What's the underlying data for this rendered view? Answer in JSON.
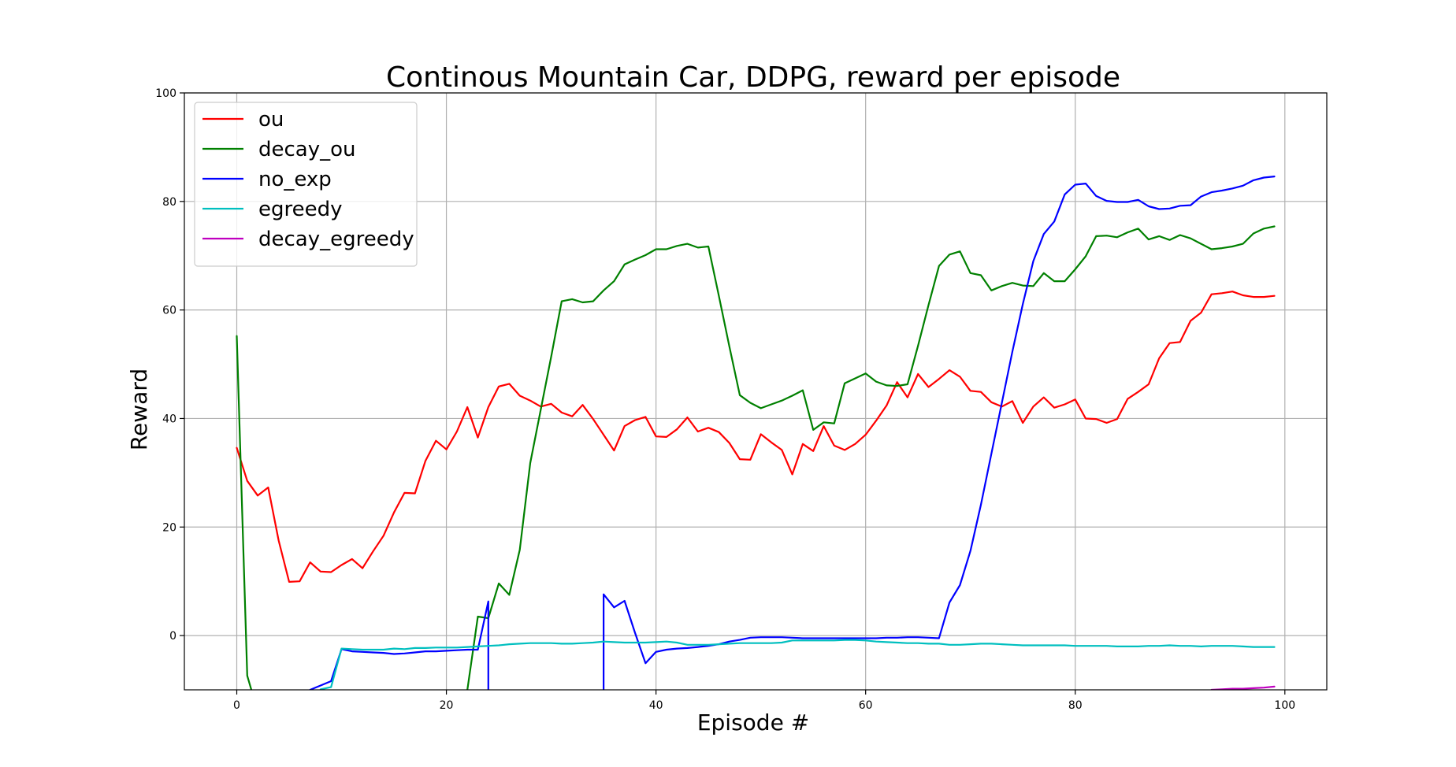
{
  "chart_data": {
    "type": "line",
    "title": "Continous Mountain Car, DDPG, reward per episode",
    "xlabel": "Episode #",
    "ylabel": "Reward",
    "xlim": [
      -5,
      104
    ],
    "ylim": [
      -10,
      100
    ],
    "xticks": [
      0,
      20,
      40,
      60,
      80,
      100
    ],
    "yticks": [
      0,
      20,
      40,
      60,
      80,
      100
    ],
    "grid": true,
    "legend_position": "top-left",
    "series": [
      {
        "name": "ou",
        "color": "#ff0000",
        "x": [
          0,
          1,
          2,
          3,
          4,
          5,
          6,
          7,
          8,
          9,
          10,
          11,
          12,
          13,
          14,
          15,
          16,
          17,
          18,
          19,
          20,
          21,
          22,
          23,
          24,
          25,
          26,
          27,
          28,
          29,
          30,
          31,
          32,
          33,
          34,
          35,
          36,
          37,
          38,
          39,
          40,
          41,
          42,
          43,
          44,
          45,
          46,
          47,
          48,
          49,
          50,
          51,
          52,
          53,
          54,
          55,
          56,
          57,
          58,
          59,
          60,
          61,
          62,
          63,
          64,
          65,
          66,
          67,
          68,
          69,
          70,
          71,
          72,
          73,
          74,
          75,
          76,
          77,
          78,
          79,
          80,
          81,
          82,
          83,
          84,
          85,
          86,
          87,
          88,
          89,
          90,
          91,
          92,
          93,
          94,
          95,
          96,
          97,
          98,
          99
        ],
        "y": [
          34.6,
          28.5,
          25.8,
          27.3,
          17.5,
          9.9,
          10.0,
          13.5,
          11.8,
          11.7,
          13.0,
          14.1,
          12.4,
          15.5,
          18.4,
          22.7,
          26.3,
          26.2,
          32.2,
          35.9,
          34.3,
          37.6,
          42.1,
          36.5,
          42.1,
          45.9,
          46.4,
          44.2,
          43.3,
          42.2,
          42.7,
          41.1,
          40.4,
          42.5,
          39.9,
          37.0,
          34.1,
          38.6,
          39.7,
          40.3,
          36.7,
          36.6,
          38.0,
          40.2,
          37.6,
          38.3,
          37.5,
          35.5,
          32.5,
          32.4,
          37.1,
          35.6,
          34.2,
          29.7,
          35.3,
          34.0,
          38.6,
          35.0,
          34.2,
          35.3,
          37.0,
          39.6,
          42.4,
          46.7,
          43.9,
          48.2,
          45.8,
          47.3,
          48.9,
          47.7,
          45.1,
          44.9,
          43.0,
          42.2,
          43.2,
          39.2,
          42.2,
          43.9,
          42.0,
          42.6,
          43.5,
          40.0,
          39.9,
          39.2,
          39.9,
          43.6,
          44.9,
          46.3,
          51.1,
          53.9,
          54.1,
          58.0,
          59.5,
          62.9,
          63.1,
          63.4,
          62.7,
          62.4,
          62.4,
          62.6
        ]
      },
      {
        "name": "decay_ou",
        "color": "#008000",
        "x": [
          0,
          1,
          2,
          21,
          22,
          23,
          24,
          25,
          26,
          27,
          28,
          29,
          30,
          31,
          32,
          33,
          34,
          35,
          36,
          37,
          38,
          39,
          40,
          41,
          42,
          43,
          44,
          45,
          46,
          47,
          48,
          49,
          50,
          51,
          52,
          53,
          54,
          55,
          56,
          57,
          58,
          59,
          60,
          61,
          62,
          63,
          64,
          65,
          66,
          67,
          68,
          69,
          70,
          71,
          72,
          73,
          74,
          75,
          76,
          77,
          78,
          79,
          80,
          81,
          82,
          83,
          84,
          85,
          86,
          87,
          88,
          89,
          90,
          91,
          92,
          93,
          94,
          95,
          96,
          97,
          98,
          99
        ],
        "y": [
          55.2,
          -7.4,
          -14,
          -14,
          -10,
          3.5,
          3.2,
          9.6,
          7.5,
          15.8,
          31.8,
          41.6,
          51.4,
          61.6,
          62.0,
          61.4,
          61.6,
          63.6,
          65.3,
          68.4,
          69.3,
          70.1,
          71.2,
          71.2,
          71.8,
          72.2,
          71.5,
          71.7,
          62.6,
          53.3,
          44.3,
          42.9,
          41.9,
          42.6,
          43.3,
          44.2,
          45.2,
          37.9,
          39.3,
          39.1,
          46.5,
          47.4,
          48.3,
          46.8,
          46.1,
          46.0,
          46.3,
          53.4,
          60.9,
          68.1,
          70.2,
          70.8,
          66.8,
          66.4,
          63.6,
          64.4,
          65.0,
          64.5,
          64.4,
          66.8,
          65.3,
          65.3,
          67.5,
          69.9,
          73.6,
          73.7,
          73.4,
          74.3,
          75.0,
          73.0,
          73.6,
          72.9,
          73.8,
          73.2,
          72.2,
          71.2,
          71.4,
          71.7,
          72.2,
          74.1,
          75.0,
          75.4
        ]
      },
      {
        "name": "no_exp",
        "color": "#0000ff",
        "x": [
          7,
          8,
          9,
          10,
          11,
          12,
          13,
          14,
          15,
          16,
          17,
          18,
          19,
          20,
          21,
          22,
          23,
          24,
          24,
          35,
          35,
          36,
          37,
          38,
          39,
          40,
          41,
          42,
          43,
          44,
          45,
          46,
          47,
          48,
          49,
          50,
          51,
          52,
          53,
          54,
          55,
          56,
          57,
          58,
          59,
          60,
          61,
          62,
          63,
          64,
          65,
          66,
          67,
          68,
          69,
          70,
          71,
          72,
          73,
          74,
          75,
          76,
          77,
          78,
          79,
          80,
          81,
          82,
          83,
          84,
          85,
          86,
          87,
          88,
          89,
          90,
          91,
          92,
          93,
          94,
          95,
          96,
          97,
          98,
          99
        ],
        "y": [
          -10.0,
          -9.2,
          -8.4,
          -2.5,
          -2.9,
          -3.0,
          -3.1,
          -3.2,
          -3.4,
          -3.3,
          -3.1,
          -2.9,
          -2.9,
          -2.8,
          -2.7,
          -2.6,
          -2.6,
          6.3,
          -14,
          -14,
          7.6,
          5.2,
          6.4,
          0.5,
          -5.1,
          -3.0,
          -2.6,
          -2.4,
          -2.3,
          -2.1,
          -1.9,
          -1.6,
          -1.1,
          -0.8,
          -0.4,
          -0.3,
          -0.3,
          -0.3,
          -0.4,
          -0.5,
          -0.5,
          -0.5,
          -0.5,
          -0.5,
          -0.5,
          -0.5,
          -0.5,
          -0.4,
          -0.4,
          -0.3,
          -0.3,
          -0.4,
          -0.5,
          6.1,
          9.3,
          15.6,
          24.1,
          33.5,
          42.9,
          52.3,
          61.1,
          69.0,
          74.0,
          76.3,
          81.3,
          83.1,
          83.3,
          81.0,
          80.1,
          79.9,
          79.9,
          80.3,
          79.1,
          78.6,
          78.7,
          79.2,
          79.3,
          80.9,
          81.7,
          82.0,
          82.4,
          82.9,
          83.9,
          84.4,
          84.6
        ]
      },
      {
        "name": "egreedy",
        "color": "#00bfbf",
        "x": [
          8,
          9,
          10,
          11,
          12,
          13,
          14,
          15,
          16,
          17,
          18,
          19,
          20,
          21,
          22,
          23,
          24,
          25,
          26,
          27,
          28,
          29,
          30,
          31,
          32,
          33,
          34,
          35,
          36,
          37,
          38,
          39,
          40,
          41,
          42,
          43,
          44,
          45,
          46,
          47,
          48,
          49,
          50,
          51,
          52,
          53,
          54,
          55,
          56,
          57,
          58,
          59,
          60,
          61,
          62,
          63,
          64,
          65,
          66,
          67,
          68,
          69,
          70,
          71,
          72,
          73,
          74,
          75,
          76,
          77,
          78,
          79,
          80,
          81,
          82,
          83,
          84,
          85,
          86,
          87,
          88,
          89,
          90,
          91,
          92,
          93,
          94,
          95,
          96,
          97,
          98,
          99
        ],
        "y": [
          -9.9,
          -9.5,
          -2.4,
          -2.5,
          -2.6,
          -2.6,
          -2.6,
          -2.4,
          -2.5,
          -2.3,
          -2.3,
          -2.2,
          -2.2,
          -2.2,
          -2.1,
          -2.0,
          -1.9,
          -1.8,
          -1.6,
          -1.5,
          -1.4,
          -1.4,
          -1.4,
          -1.5,
          -1.5,
          -1.4,
          -1.3,
          -1.1,
          -1.2,
          -1.3,
          -1.3,
          -1.3,
          -1.2,
          -1.1,
          -1.3,
          -1.7,
          -1.7,
          -1.7,
          -1.6,
          -1.5,
          -1.4,
          -1.4,
          -1.4,
          -1.4,
          -1.3,
          -0.9,
          -0.9,
          -0.9,
          -0.9,
          -0.9,
          -0.8,
          -0.8,
          -0.9,
          -1.1,
          -1.2,
          -1.3,
          -1.4,
          -1.4,
          -1.5,
          -1.5,
          -1.7,
          -1.7,
          -1.6,
          -1.5,
          -1.5,
          -1.6,
          -1.7,
          -1.8,
          -1.8,
          -1.8,
          -1.8,
          -1.8,
          -1.9,
          -1.9,
          -1.9,
          -1.9,
          -2.0,
          -2.0,
          -2.0,
          -1.9,
          -1.9,
          -1.8,
          -1.9,
          -1.9,
          -2.0,
          -1.9,
          -1.9,
          -1.9,
          -2.0,
          -2.1,
          -2.1,
          -2.1
        ]
      },
      {
        "name": "decay_egreedy",
        "color": "#bf00bf",
        "x": [
          93,
          94,
          95,
          96,
          97,
          98,
          99
        ],
        "y": [
          -10.0,
          -9.9,
          -9.8,
          -9.8,
          -9.7,
          -9.6,
          -9.4
        ]
      }
    ]
  }
}
